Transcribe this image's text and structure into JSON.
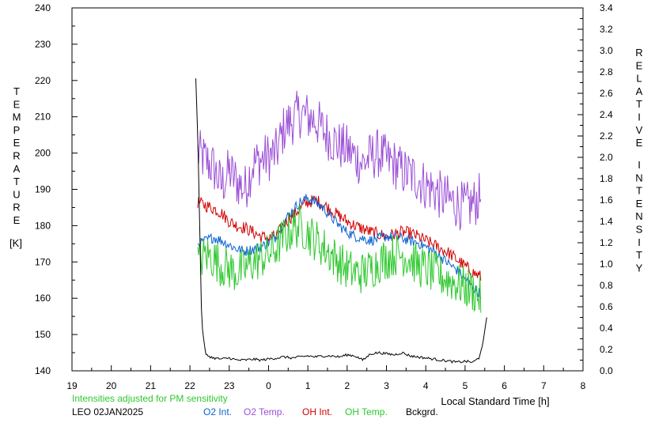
{
  "chart_data": {
    "type": "line",
    "left_axis": {
      "title_letters": [
        "T",
        "E",
        "M",
        "P",
        "E",
        "R",
        "A",
        "T",
        "U",
        "R",
        "E"
      ],
      "unit": "[K]",
      "ylim": [
        140,
        240
      ],
      "ticks": [
        "140",
        "150",
        "160",
        "170",
        "180",
        "190",
        "200",
        "210",
        "220",
        "230",
        "240"
      ]
    },
    "right_axis": {
      "title_letters_1": [
        "R",
        "E",
        "L",
        "A",
        "T",
        "I",
        "V",
        "E"
      ],
      "title_letters_2": [
        "I",
        "N",
        "T",
        "E",
        "N",
        "S",
        "I",
        "T",
        "Y"
      ],
      "ylim": [
        0.0,
        3.4
      ],
      "ticks": [
        "0.0",
        "0.2",
        "0.4",
        "0.6",
        "0.8",
        "1.0",
        "1.2",
        "1.4",
        "1.6",
        "1.8",
        "2.0",
        "2.2",
        "2.4",
        "2.6",
        "2.8",
        "3.0",
        "3.2",
        "3.4"
      ]
    },
    "x_axis": {
      "title": "Local Standard Time [h]",
      "ticks": [
        "19",
        "20",
        "21",
        "22",
        "23",
        "0",
        "1",
        "2",
        "3",
        "4",
        "5",
        "6",
        "7",
        "8"
      ]
    },
    "note": "Intensities adjusted for PM sensitivity",
    "station": "LEO 02JAN2025",
    "legend": {
      "o2_int": "O2 Int.",
      "o2_temp": "O2 Temp.",
      "oh_int": "OH Int.",
      "oh_temp": "OH Temp.",
      "bckgrd": "Bckgrd."
    },
    "colors": {
      "o2_int": "#0a64d2",
      "o2_temp": "#9b4fd6",
      "oh_int": "#d20000",
      "oh_temp": "#2ec82e",
      "bckgrd": "#000000",
      "note": "#2ec82e"
    },
    "series": [
      {
        "key": "o2_temp",
        "axis": "left",
        "x": [
          22.2,
          22.4,
          22.6,
          22.8,
          23.0,
          23.2,
          23.4,
          23.6,
          23.8,
          24.0,
          24.2,
          24.4,
          24.6,
          24.8,
          25.0,
          25.2,
          25.4,
          25.6,
          25.8,
          26.0,
          26.2,
          26.4,
          26.6,
          26.8,
          27.0,
          27.2,
          27.4,
          27.6,
          27.8,
          28.0,
          28.2,
          28.4,
          28.6,
          28.8,
          29.0,
          29.2,
          29.4
        ],
        "y": [
          200,
          198,
          196,
          191,
          195,
          192,
          190,
          197,
          198,
          199,
          200,
          207,
          209,
          211,
          210,
          209,
          206,
          204,
          202,
          201,
          199,
          197,
          199,
          200,
          198,
          197,
          195,
          194,
          193,
          191,
          190,
          188,
          187,
          186,
          185,
          186,
          188
        ]
      },
      {
        "key": "oh_int",
        "axis": "right",
        "x": [
          22.2,
          22.4,
          22.6,
          22.8,
          23.0,
          23.2,
          23.4,
          23.6,
          23.8,
          24.0,
          24.2,
          24.4,
          24.6,
          24.8,
          25.0,
          25.2,
          25.4,
          25.6,
          25.8,
          26.0,
          26.2,
          26.4,
          26.6,
          26.8,
          27.0,
          27.2,
          27.4,
          27.6,
          27.8,
          28.0,
          28.2,
          28.4,
          28.6,
          28.8,
          29.0,
          29.2,
          29.4
        ],
        "y": [
          1.58,
          1.55,
          1.52,
          1.48,
          1.4,
          1.36,
          1.34,
          1.3,
          1.26,
          1.24,
          1.26,
          1.38,
          1.45,
          1.52,
          1.58,
          1.6,
          1.56,
          1.5,
          1.45,
          1.4,
          1.36,
          1.33,
          1.3,
          1.28,
          1.26,
          1.28,
          1.3,
          1.29,
          1.26,
          1.22,
          1.18,
          1.14,
          1.1,
          1.04,
          0.98,
          0.92,
          0.88
        ]
      },
      {
        "key": "o2_int",
        "axis": "right",
        "x": [
          22.2,
          22.4,
          22.6,
          22.8,
          23.0,
          23.2,
          23.4,
          23.6,
          23.8,
          24.0,
          24.2,
          24.4,
          24.6,
          24.8,
          25.0,
          25.2,
          25.4,
          25.6,
          25.8,
          26.0,
          26.2,
          26.4,
          26.6,
          26.8,
          27.0,
          27.2,
          27.4,
          27.6,
          27.8,
          28.0,
          28.2,
          28.4,
          28.6,
          28.8,
          29.0,
          29.2,
          29.4
        ],
        "y": [
          1.18,
          1.22,
          1.25,
          1.22,
          1.18,
          1.14,
          1.12,
          1.14,
          1.16,
          1.2,
          1.26,
          1.4,
          1.5,
          1.58,
          1.62,
          1.58,
          1.52,
          1.44,
          1.36,
          1.3,
          1.26,
          1.24,
          1.22,
          1.24,
          1.26,
          1.25,
          1.24,
          1.22,
          1.2,
          1.16,
          1.12,
          1.06,
          1.0,
          0.94,
          0.86,
          0.78,
          0.72
        ]
      },
      {
        "key": "oh_temp",
        "axis": "left",
        "x": [
          22.2,
          22.4,
          22.6,
          22.8,
          23.0,
          23.2,
          23.4,
          23.6,
          23.8,
          24.0,
          24.2,
          24.4,
          24.6,
          24.8,
          25.0,
          25.2,
          25.4,
          25.6,
          25.8,
          26.0,
          26.2,
          26.4,
          26.6,
          26.8,
          27.0,
          27.2,
          27.4,
          27.6,
          27.8,
          28.0,
          28.2,
          28.4,
          28.6,
          28.8,
          29.0,
          29.2,
          29.4
        ],
        "y": [
          170,
          172,
          171,
          169,
          168,
          167,
          168,
          170,
          171,
          172,
          174,
          177,
          179,
          180,
          178,
          176,
          174,
          172,
          170,
          168,
          167,
          167,
          168,
          170,
          171,
          172,
          172,
          171,
          169,
          168,
          167,
          166,
          165,
          164,
          163,
          162,
          160
        ]
      },
      {
        "key": "bckgrd",
        "axis": "right",
        "x": [
          22.15,
          22.2,
          22.3,
          22.4,
          22.6,
          22.8,
          23.0,
          23.2,
          23.4,
          23.6,
          23.8,
          24.0,
          24.2,
          24.4,
          24.6,
          24.8,
          25.0,
          25.2,
          25.4,
          25.6,
          25.8,
          26.0,
          26.2,
          26.4,
          26.6,
          26.8,
          27.0,
          27.2,
          27.4,
          27.6,
          27.8,
          28.0,
          28.2,
          28.4,
          28.6,
          28.8,
          29.0,
          29.2,
          29.35,
          29.45,
          29.55
        ],
        "y": [
          2.74,
          2.2,
          0.45,
          0.15,
          0.12,
          0.11,
          0.12,
          0.1,
          0.1,
          0.11,
          0.1,
          0.11,
          0.12,
          0.13,
          0.12,
          0.13,
          0.14,
          0.13,
          0.14,
          0.14,
          0.13,
          0.15,
          0.14,
          0.1,
          0.16,
          0.17,
          0.16,
          0.15,
          0.17,
          0.14,
          0.13,
          0.12,
          0.11,
          0.1,
          0.09,
          0.08,
          0.09,
          0.08,
          0.12,
          0.25,
          0.5
        ]
      }
    ]
  }
}
